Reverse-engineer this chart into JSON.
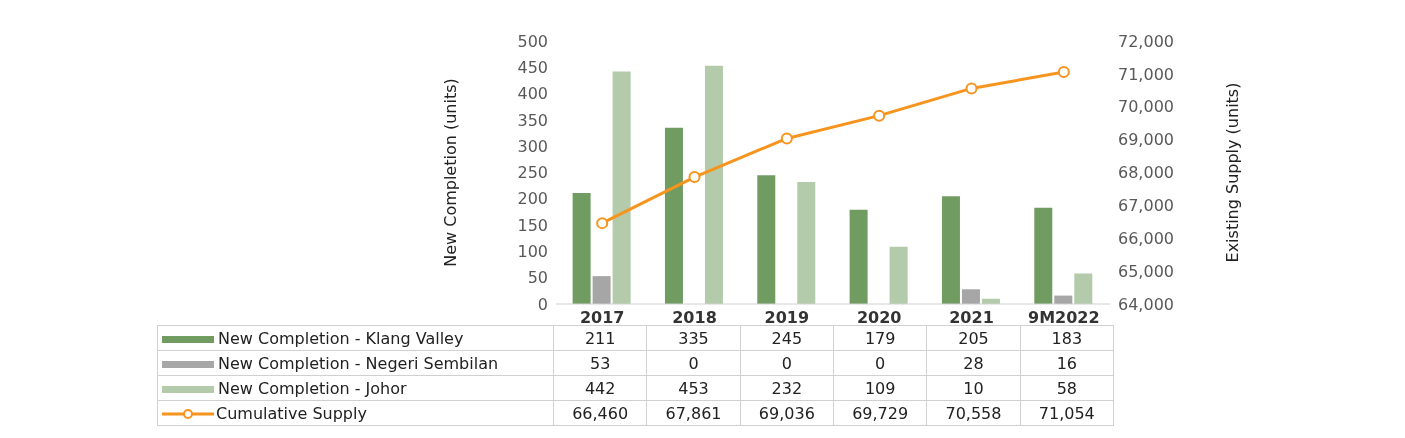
{
  "chart_data": {
    "type": "bar",
    "ylabel": "New Completion (units)",
    "y2label": "Existing Supply (units)",
    "categories": [
      "2017",
      "2018",
      "2019",
      "2020",
      "2021",
      "9M2022"
    ],
    "series": [
      {
        "name": "New Completion - Klang Valley",
        "color": "#709c62",
        "values": [
          211,
          335,
          245,
          179,
          205,
          183
        ],
        "value_labels": [
          "211",
          "335",
          "245",
          "179",
          "205",
          "183"
        ]
      },
      {
        "name": "New Completion - Negeri Sembilan",
        "color": "#a6a6a6",
        "values": [
          53,
          0,
          0,
          0,
          28,
          16
        ],
        "value_labels": [
          "53",
          "0",
          "0",
          "0",
          "28",
          "16"
        ]
      },
      {
        "name": "New Completion - Johor",
        "color": "#b3cbaa",
        "values": [
          442,
          453,
          232,
          109,
          10,
          58
        ],
        "value_labels": [
          "442",
          "453",
          "232",
          "109",
          "10",
          "58"
        ]
      },
      {
        "name": "Cumulative Supply",
        "color": "#f7941d",
        "type": "line",
        "axis": "y2",
        "marker": "circle",
        "values": [
          66460,
          67861,
          69036,
          69729,
          70558,
          71054
        ],
        "value_labels": [
          "66,460",
          "67,861",
          "69,036",
          "69,729",
          "70,558",
          "71,054"
        ]
      }
    ],
    "ylim": [
      0,
      500
    ],
    "yticks": [
      0,
      50,
      100,
      150,
      200,
      250,
      300,
      350,
      400,
      450,
      500
    ],
    "y2lim": [
      64000,
      72000
    ],
    "y2ticks": [
      {
        "value": 64000,
        "label": "64,000"
      },
      {
        "value": 65000,
        "label": "65,000"
      },
      {
        "value": 66000,
        "label": "66,000"
      },
      {
        "value": 67000,
        "label": "67,000"
      },
      {
        "value": 68000,
        "label": "68,000"
      },
      {
        "value": 69000,
        "label": "69,000"
      },
      {
        "value": 70000,
        "label": "70,000"
      },
      {
        "value": 71000,
        "label": "71,000"
      },
      {
        "value": 72000,
        "label": "72,000"
      }
    ],
    "legend": "bottom"
  }
}
